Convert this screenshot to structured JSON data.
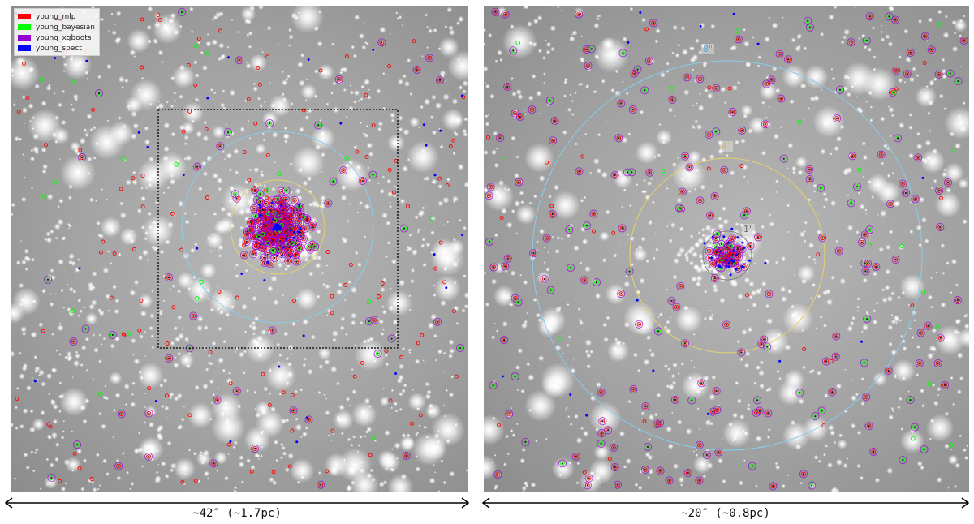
{
  "legend": {
    "items": [
      {
        "label": "young_mlp",
        "color": "#ff0000"
      },
      {
        "label": "young_bayesian",
        "color": "#00ff00"
      },
      {
        "label": "young_xgboots",
        "color": "#9400d3"
      },
      {
        "label": "young_spect",
        "color": "#0000ff"
      }
    ]
  },
  "right_panel": {
    "rings": [
      {
        "label": "8\"",
        "color": "#87ceeb"
      },
      {
        "label": "4\"",
        "color": "#e6d36a"
      },
      {
        "label": "1\"",
        "color": "#808080"
      }
    ]
  },
  "scale_bars": {
    "left": "~42″ (~1.7pc)",
    "right": "~20″ (~0.8pc)"
  }
}
